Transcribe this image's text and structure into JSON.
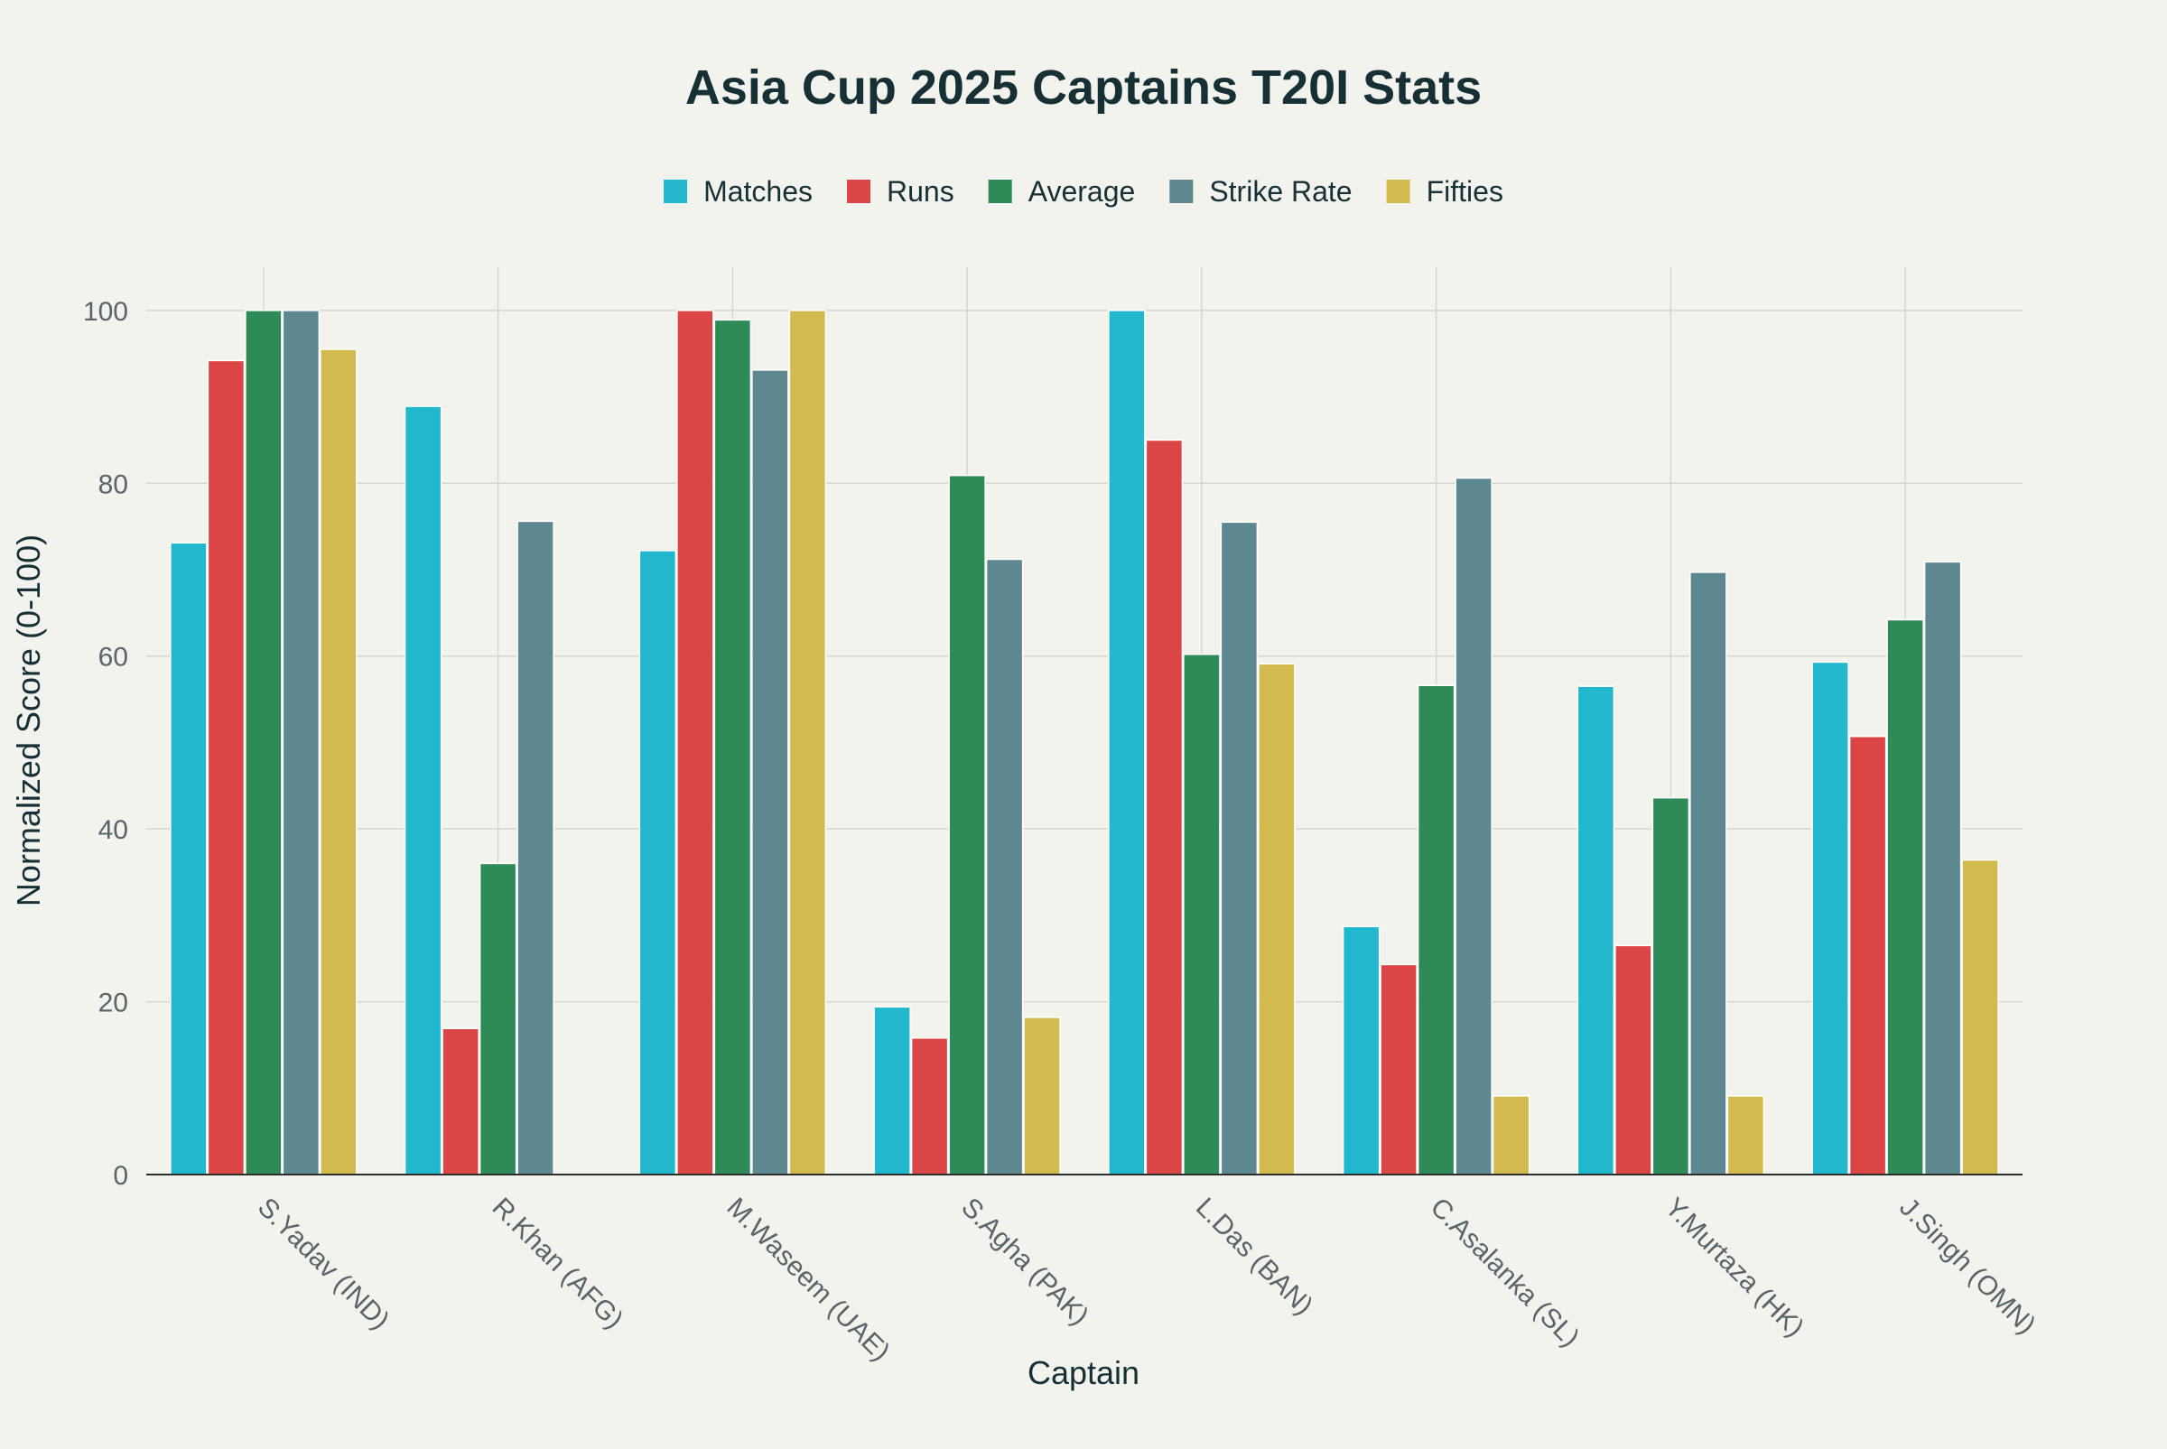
{
  "chart_data": {
    "type": "bar",
    "title": "Asia Cup 2025 Captains T20I Stats",
    "xlabel": "Captain",
    "ylabel": "Normalized Score (0-100)",
    "ylim": [
      0,
      105
    ],
    "yticks": [
      0,
      20,
      40,
      60,
      80,
      100
    ],
    "grid": true,
    "legend_position": "top-center",
    "categories": [
      "S.Yadav (IND)",
      "R.Khan (AFG)",
      "M.Waseem (UAE)",
      "S.Agha (PAK)",
      "L.Das (BAN)",
      "C.Asalanka (SL)",
      "Y.Murtaza (HK)",
      "J.Singh (OMN)"
    ],
    "series": [
      {
        "name": "Matches",
        "color": "#21b8cd",
        "values": [
          73.1,
          88.9,
          72.2,
          19.4,
          100,
          28.7,
          56.5,
          59.3
        ]
      },
      {
        "name": "Runs",
        "color": "#db4545",
        "values": [
          94.2,
          16.9,
          100,
          15.8,
          85.0,
          24.3,
          26.5,
          50.7
        ]
      },
      {
        "name": "Average",
        "color": "#2e8b57",
        "values": [
          100,
          36.0,
          98.9,
          80.9,
          60.2,
          56.6,
          43.6,
          64.2
        ]
      },
      {
        "name": "Strike Rate",
        "color": "#5e8890",
        "values": [
          100,
          75.6,
          93.1,
          71.2,
          75.5,
          80.6,
          69.7,
          70.9
        ]
      },
      {
        "name": "Fifties",
        "color": "#d3ba4e",
        "values": [
          95.5,
          0,
          100,
          18.2,
          59.1,
          9.1,
          9.1,
          36.4
        ]
      }
    ]
  }
}
